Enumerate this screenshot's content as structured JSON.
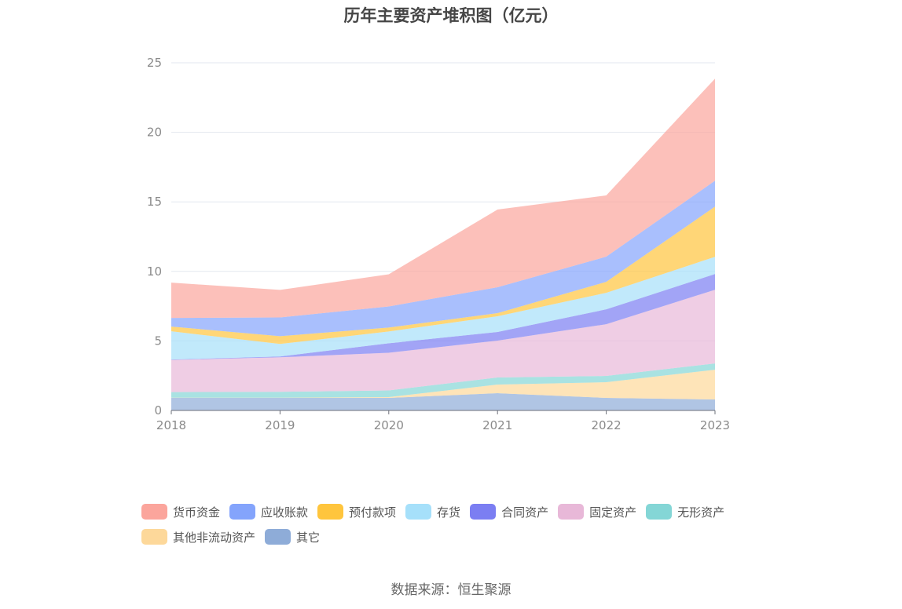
{
  "title": "历年主要资产堆积图（亿元）",
  "source": "数据来源：恒生聚源",
  "chart_data": {
    "type": "area",
    "stacked": true,
    "title": "历年主要资产堆积图（亿元）",
    "xlabel": "",
    "ylabel": "",
    "categories": [
      "2018",
      "2019",
      "2020",
      "2021",
      "2022",
      "2023"
    ],
    "ylim": [
      0,
      25
    ],
    "yticks": [
      0,
      5,
      10,
      15,
      20,
      25
    ],
    "grid": true,
    "legend_position": "bottom",
    "series": [
      {
        "name": "其它",
        "color": "#8eacd8",
        "values": [
          0.9,
          0.9,
          0.9,
          1.24,
          0.9,
          0.79
        ]
      },
      {
        "name": "其他非流动资产",
        "color": "#fdd89a",
        "values": [
          0.02,
          0.02,
          0.06,
          0.62,
          1.13,
          2.14
        ]
      },
      {
        "name": "无形资产",
        "color": "#84d6d6",
        "values": [
          0.4,
          0.42,
          0.48,
          0.51,
          0.45,
          0.45
        ]
      },
      {
        "name": "固定资产",
        "color": "#e8b8d8",
        "values": [
          2.31,
          2.48,
          2.71,
          2.65,
          3.72,
          5.3
        ]
      },
      {
        "name": "合同资产",
        "color": "#7b7ef2",
        "values": [
          0.03,
          0.06,
          0.68,
          0.62,
          1.07,
          1.13
        ]
      },
      {
        "name": "存货",
        "color": "#a6e0fa",
        "values": [
          2.03,
          0.9,
          0.85,
          1.13,
          1.19,
          1.24
        ]
      },
      {
        "name": "预付款项",
        "color": "#ffc53d",
        "values": [
          0.34,
          0.56,
          0.28,
          0.23,
          0.79,
          3.61
        ]
      },
      {
        "name": "应收账款",
        "color": "#84a4fc",
        "values": [
          0.62,
          1.35,
          1.52,
          1.86,
          1.81,
          1.86
        ]
      },
      {
        "name": "货币资金",
        "color": "#fba59c",
        "values": [
          2.54,
          1.98,
          2.31,
          5.59,
          4.4,
          7.34
        ]
      }
    ],
    "legend_order": [
      "货币资金",
      "应收账款",
      "预付款项",
      "存货",
      "合同资产",
      "固定资产",
      "无形资产",
      "其他非流动资产",
      "其它"
    ]
  }
}
